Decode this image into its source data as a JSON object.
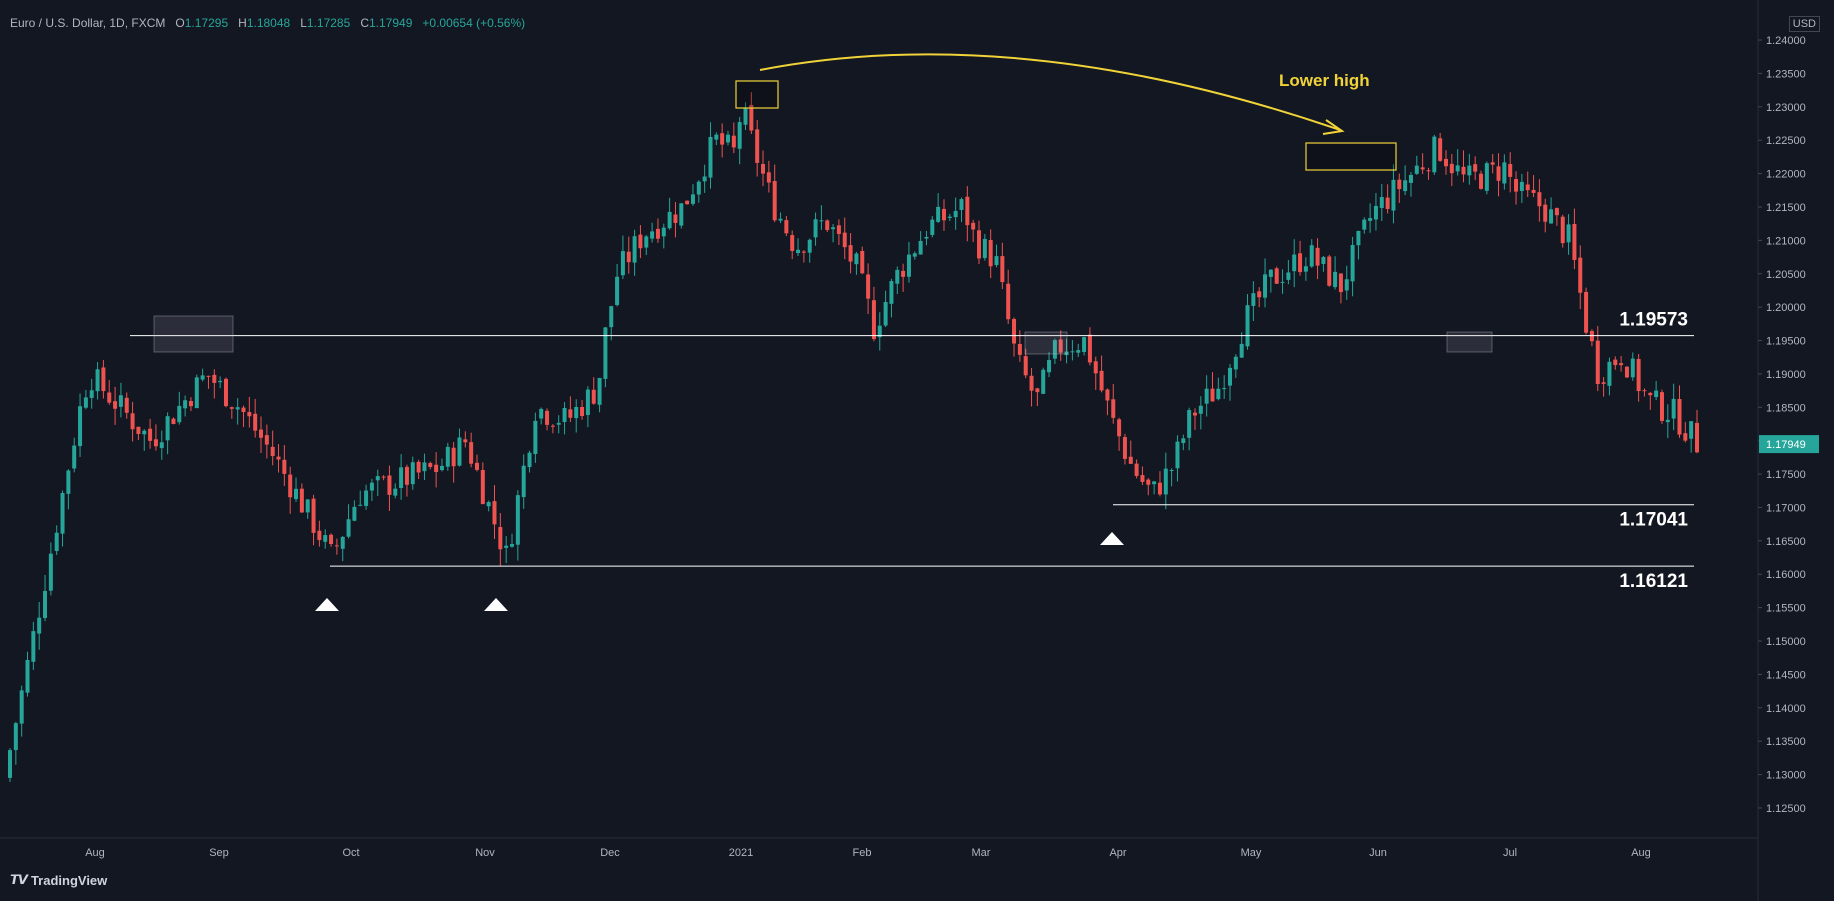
{
  "header": {
    "symbol": "Euro / U.S. Dollar, 1D, FXCM",
    "o_label": "O",
    "o_value": "1.17295",
    "h_label": "H",
    "h_value": "1.18048",
    "l_label": "L",
    "l_value": "1.17285",
    "c_label": "C",
    "c_value": "1.17949",
    "change": "+0.00654 (+0.56%)"
  },
  "currency": "USD",
  "brand": "TradingView",
  "colors": {
    "background": "#131722",
    "up": "#26a69a",
    "down": "#ef5350",
    "annotation": "#f0d338",
    "level_line": "#ffffff",
    "price_badge": "#26a69a"
  },
  "chart_data": {
    "type": "candlestick",
    "symbol": "EURUSD",
    "timeframe": "1D",
    "x_ticks": [
      "Aug",
      "Sep",
      "Oct",
      "Nov",
      "Dec",
      "2021",
      "Feb",
      "Mar",
      "Apr",
      "May",
      "Jun",
      "Jul",
      "Aug"
    ],
    "y_ticks": [
      "1.24000",
      "1.23500",
      "1.23000",
      "1.22500",
      "1.22000",
      "1.21500",
      "1.21000",
      "1.20500",
      "1.20000",
      "1.19500",
      "1.19000",
      "1.18500",
      "1.18000",
      "1.17500",
      "1.17000",
      "1.16500",
      "1.16000",
      "1.15500",
      "1.15000",
      "1.14500",
      "1.14000",
      "1.13500",
      "1.13000",
      "1.12500"
    ],
    "ylim": [
      1.1205,
      1.2445
    ],
    "last_price": "1.17949",
    "key_points": [
      {
        "month_index": 0.0,
        "price": 1.128
      },
      {
        "month_index": 0.9,
        "price": 1.185
      },
      {
        "month_index": 1.0,
        "price": 1.19
      },
      {
        "month_index": 1.5,
        "price": 1.18
      },
      {
        "month_index": 1.95,
        "price": 1.19
      },
      {
        "month_index": 2.2,
        "price": 1.185
      },
      {
        "month_index": 2.45,
        "price": 1.178
      },
      {
        "month_index": 2.75,
        "price": 1.168
      },
      {
        "month_index": 2.9,
        "price": 1.1625
      },
      {
        "month_index": 3.1,
        "price": 1.172
      },
      {
        "month_index": 3.4,
        "price": 1.174
      },
      {
        "month_index": 3.7,
        "price": 1.176
      },
      {
        "month_index": 3.9,
        "price": 1.18
      },
      {
        "month_index": 4.1,
        "price": 1.169
      },
      {
        "month_index": 4.22,
        "price": 1.1625
      },
      {
        "month_index": 4.45,
        "price": 1.185
      },
      {
        "month_index": 4.7,
        "price": 1.183
      },
      {
        "month_index": 4.95,
        "price": 1.188
      },
      {
        "month_index": 5.0,
        "price": 1.195
      },
      {
        "month_index": 5.1,
        "price": 1.205
      },
      {
        "month_index": 5.3,
        "price": 1.211
      },
      {
        "month_index": 5.6,
        "price": 1.215
      },
      {
        "month_index": 5.85,
        "price": 1.225
      },
      {
        "month_index": 6.0,
        "price": 1.223
      },
      {
        "month_index": 6.05,
        "price": 1.23
      },
      {
        "month_index": 6.15,
        "price": 1.224
      },
      {
        "month_index": 6.3,
        "price": 1.216
      },
      {
        "month_index": 6.5,
        "price": 1.209
      },
      {
        "month_index": 6.75,
        "price": 1.213
      },
      {
        "month_index": 7.0,
        "price": 1.206
      },
      {
        "month_index": 7.15,
        "price": 1.197
      },
      {
        "month_index": 7.35,
        "price": 1.205
      },
      {
        "month_index": 7.6,
        "price": 1.212
      },
      {
        "month_index": 7.9,
        "price": 1.215
      },
      {
        "month_index": 8.0,
        "price": 1.21
      },
      {
        "month_index": 8.15,
        "price": 1.207
      },
      {
        "month_index": 8.3,
        "price": 1.192
      },
      {
        "month_index": 8.45,
        "price": 1.186
      },
      {
        "month_index": 8.6,
        "price": 1.194
      },
      {
        "month_index": 8.8,
        "price": 1.195
      },
      {
        "month_index": 9.0,
        "price": 1.183
      },
      {
        "month_index": 9.15,
        "price": 1.176
      },
      {
        "month_index": 9.3,
        "price": 1.172
      },
      {
        "month_index": 9.45,
        "price": 1.176
      },
      {
        "month_index": 9.6,
        "price": 1.184
      },
      {
        "month_index": 9.8,
        "price": 1.188
      },
      {
        "month_index": 10.0,
        "price": 1.198
      },
      {
        "month_index": 10.2,
        "price": 1.204
      },
      {
        "month_index": 10.5,
        "price": 1.208
      },
      {
        "month_index": 10.75,
        "price": 1.203
      },
      {
        "month_index": 11.0,
        "price": 1.214
      },
      {
        "month_index": 11.2,
        "price": 1.218
      },
      {
        "month_index": 11.5,
        "price": 1.224
      },
      {
        "month_index": 11.7,
        "price": 1.219
      },
      {
        "month_index": 11.9,
        "price": 1.22
      },
      {
        "month_index": 12.0,
        "price": 1.221
      },
      {
        "month_index": 12.1,
        "price": 1.217
      },
      {
        "month_index": 12.3,
        "price": 1.215
      },
      {
        "month_index": 12.5,
        "price": 1.21
      },
      {
        "month_index": 12.62,
        "price": 1.198
      },
      {
        "month_index": 12.72,
        "price": 1.19
      },
      {
        "month_index": 12.9,
        "price": 1.193
      },
      {
        "month_index": 13.1,
        "price": 1.186
      },
      {
        "month_index": 13.3,
        "price": 1.184
      },
      {
        "month_index": 13.5,
        "price": 1.179
      },
      {
        "month_index": 13.7,
        "price": 1.181
      },
      {
        "month_index": 13.9,
        "price": 1.177
      },
      {
        "month_index": 14.05,
        "price": 1.18
      },
      {
        "month_index": 14.25,
        "price": 1.187
      },
      {
        "month_index": 14.45,
        "price": 1.184
      },
      {
        "month_index": 14.6,
        "price": 1.176
      },
      {
        "month_index": 14.8,
        "price": 1.1735
      },
      {
        "month_index": 14.97,
        "price": 1.1795
      }
    ],
    "horizontal_levels": [
      {
        "label": "1.19573",
        "price": 1.19573
      },
      {
        "label": "1.17041",
        "price": 1.17041
      },
      {
        "label": "1.16121",
        "price": 1.16121
      }
    ],
    "annotations": [
      {
        "text": "Lower high",
        "type": "arrow-arc"
      }
    ]
  }
}
